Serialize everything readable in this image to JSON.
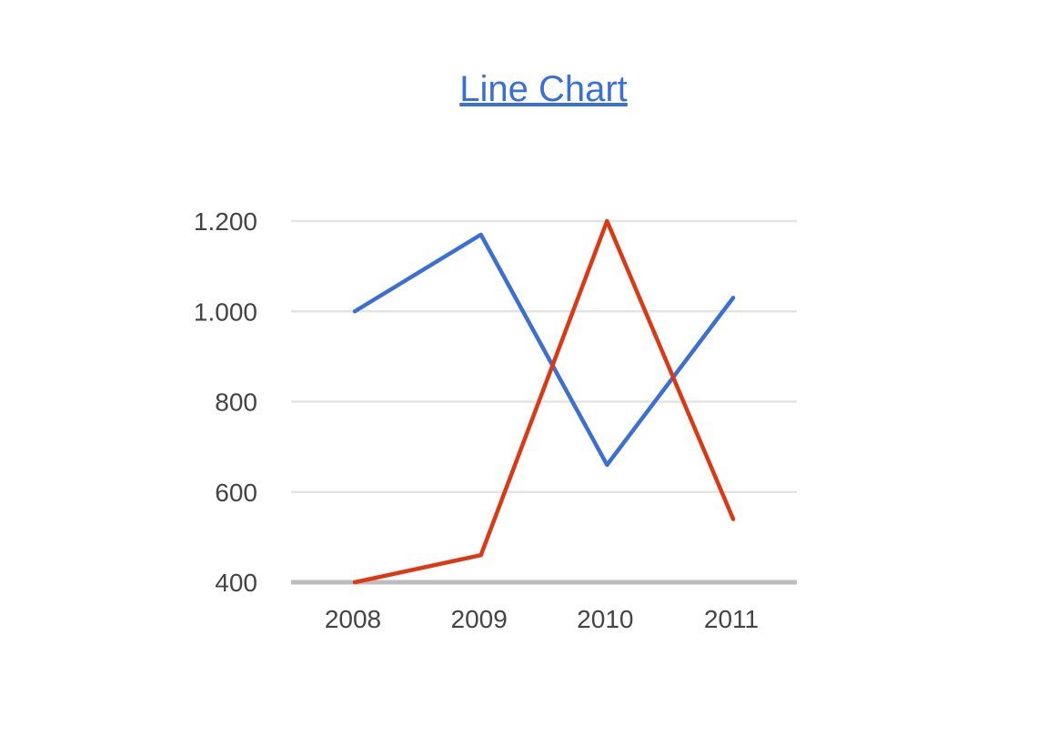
{
  "chart_data": {
    "type": "line",
    "title": "Line Chart",
    "xlabel": "",
    "ylabel": "",
    "categories": [
      "2008",
      "2009",
      "2010",
      "2011"
    ],
    "series": [
      {
        "color": "#3b6fd6",
        "values": [
          1000,
          1170,
          660,
          1030
        ]
      },
      {
        "color": "#dc3912",
        "values": [
          400,
          460,
          1200,
          540
        ]
      }
    ],
    "ylim": [
      400,
      1200
    ],
    "yticks": [
      {
        "value": 400,
        "label": "400"
      },
      {
        "value": 600,
        "label": "600"
      },
      {
        "value": 800,
        "label": "800"
      },
      {
        "value": 1000,
        "label": "1.000"
      },
      {
        "value": 1200,
        "label": "1.200"
      }
    ],
    "grid": true,
    "legend": "none"
  }
}
